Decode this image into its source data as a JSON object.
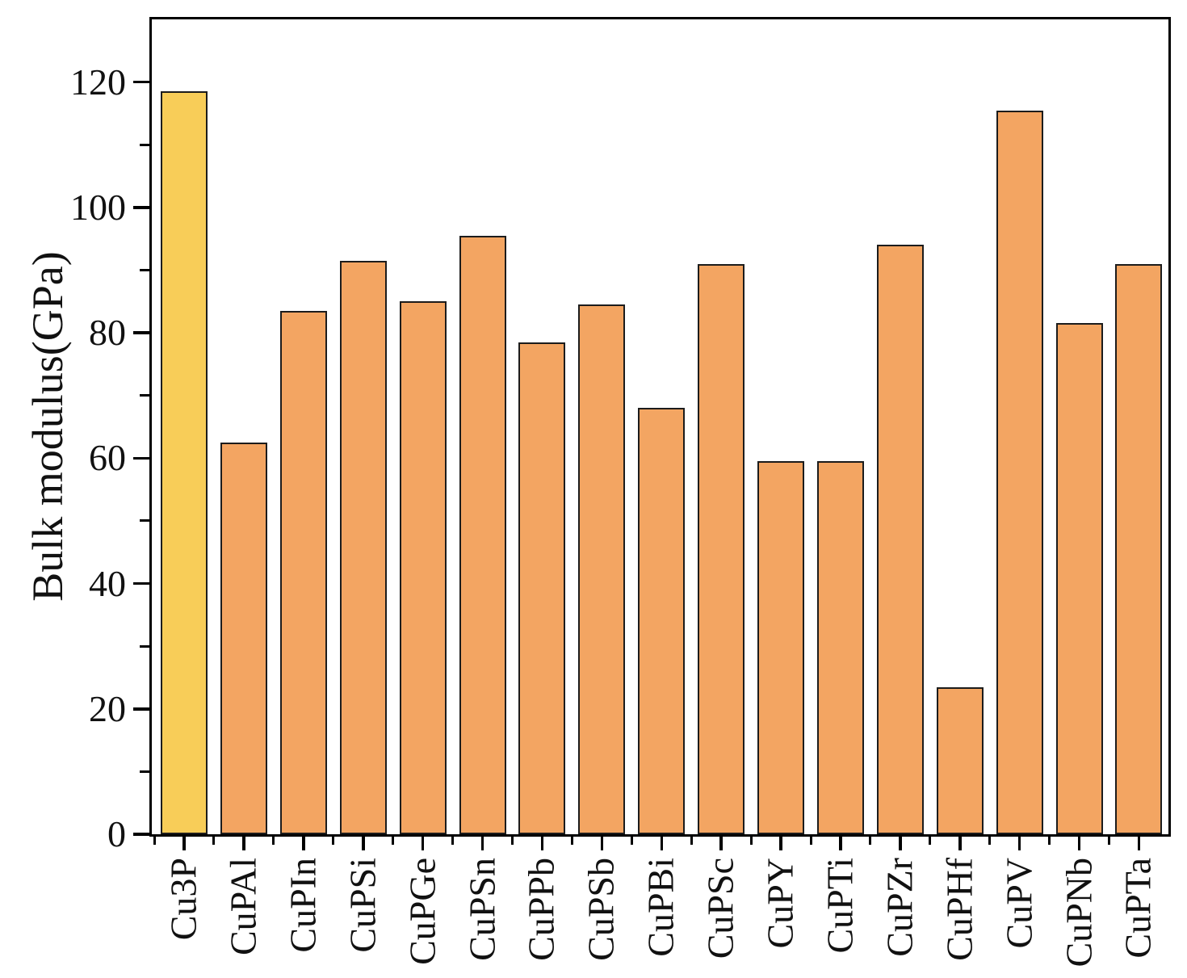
{
  "chart_data": {
    "type": "bar",
    "title": "",
    "xlabel": "",
    "ylabel": "Bulk modulus(GPa)",
    "categories": [
      "Cu3P",
      "CuPAl",
      "CuPIn",
      "CuPSi",
      "CuPGe",
      "CuPSn",
      "CuPPb",
      "CuPSb",
      "CuPBi",
      "CuPSc",
      "CuPY",
      "CuPTi",
      "CuPZr",
      "CuPHf",
      "CuPV",
      "CuPNb",
      "CuPTa"
    ],
    "values": [
      118.5,
      62.5,
      83.5,
      91.5,
      85,
      95.5,
      78.5,
      84.5,
      68,
      91,
      59.5,
      59.5,
      94,
      23.5,
      115.5,
      81.5,
      91
    ],
    "ylim": [
      0,
      130
    ],
    "yticks": [
      0,
      20,
      40,
      60,
      80,
      100,
      120
    ],
    "ytick_labels": [
      "0",
      "20",
      "40",
      "60",
      "80",
      "100",
      "120"
    ],
    "minor_ytick_interval": 10,
    "grid": false,
    "legend_position": "none",
    "colors": {
      "highlight_index": 0,
      "highlight_bar": "#F8CD58",
      "default_bar": "#F3A562",
      "bar_edge": "#1c1c1c",
      "axis": "#000000",
      "text": "#111111"
    }
  }
}
